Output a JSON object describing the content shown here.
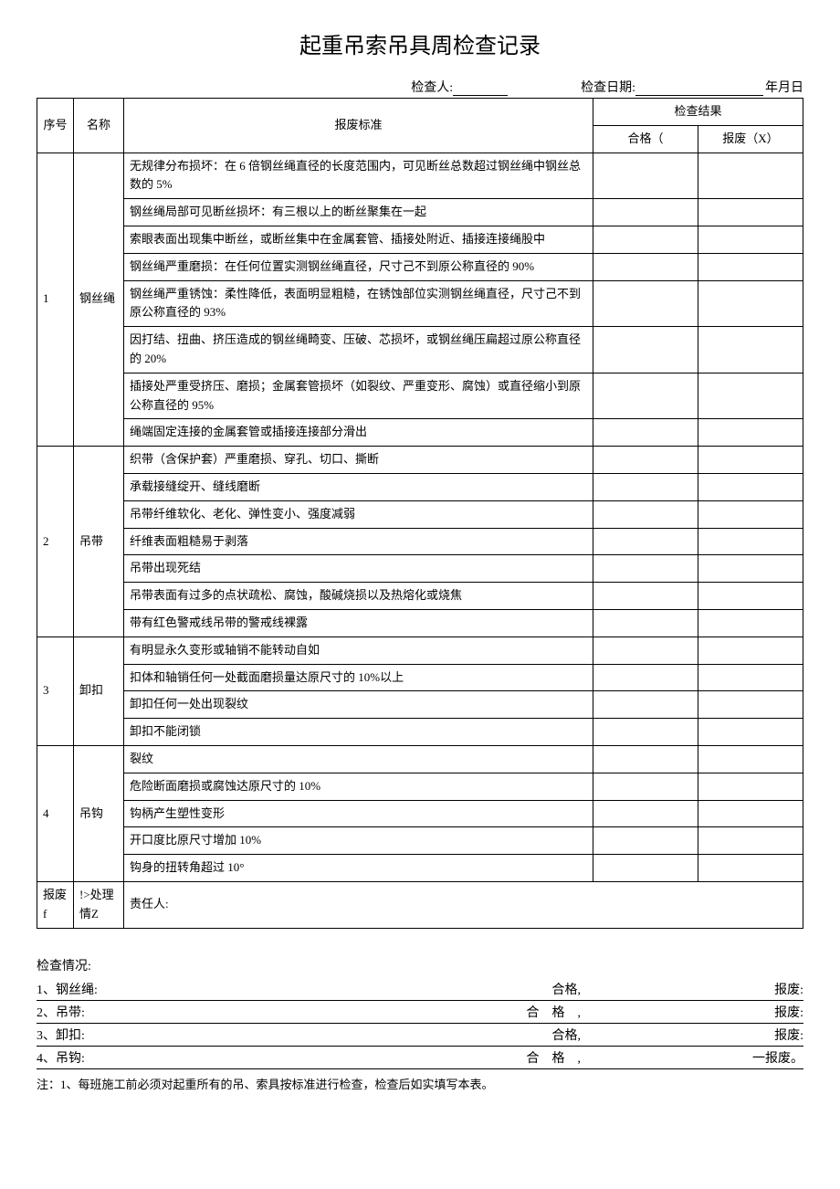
{
  "title": "起重吊索吊具周检查记录",
  "header": {
    "inspector_label": "检查人:",
    "date_label": "检查日期:",
    "date_suffix": "年月日"
  },
  "table": {
    "headers": {
      "seq": "序号",
      "name": "名称",
      "standard": "报废标准",
      "result": "检查结果",
      "pass": "合格（",
      "fail": "报废（X）"
    },
    "sections": [
      {
        "seq": "1",
        "name": "钢丝绳",
        "rows": [
          "无规律分布损坏：在 6 倍钢丝绳直径的长度范围内，可见断丝总数超过钢丝绳中钢丝总数的 5%",
          "钢丝绳局部可见断丝损坏：有三根以上的断丝聚集在一起",
          "索眼表面出现集中断丝，或断丝集中在金属套管、插接处附近、插接连接绳股中",
          "钢丝绳严重磨损：在任何位置实测钢丝绳直径，尺寸己不到原公称直径的 90%",
          "钢丝绳严重锈蚀：柔性降低，表面明显粗糙，在锈蚀部位实测钢丝绳直径，尺寸己不到原公称直径的 93%",
          "因打结、扭曲、挤压造成的钢丝绳畸变、压破、芯损坏，或钢丝绳压扁超过原公称直径的 20%",
          "插接处严重受挤压、磨损；金属套管损坏（如裂纹、严重变形、腐蚀）或直径缩小到原公称直径的 95%",
          "绳端固定连接的金属套管或插接连接部分滑出"
        ]
      },
      {
        "seq": "2",
        "name": "吊带",
        "rows": [
          "织带（含保护套）严重磨损、穿孔、切口、撕断",
          "承载接缝绽开、缝线磨断",
          "吊带纤维软化、老化、弹性变小、强度减弱",
          "纤维表面粗糙易于剥落",
          "吊带出现死结",
          "吊带表面有过多的点状疏松、腐蚀，酸碱烧损以及热熔化或烧焦",
          "带有红色警戒线吊带的警戒线裸露"
        ]
      },
      {
        "seq": "3",
        "name": "卸扣",
        "rows": [
          "有明显永久变形或轴销不能转动自如",
          "扣体和轴销任何一处截面磨损量达原尺寸的 10%以上",
          "卸扣任何一处出现裂纹",
          "卸扣不能闭锁"
        ]
      },
      {
        "seq": "4",
        "name": "吊钩",
        "rows": [
          "裂纹",
          "危险断面磨损或腐蚀达原尺寸的 10%",
          "钩柄产生塑性变形",
          "开口度比原尺寸增加 10%",
          "钩身的扭转角超过 10°"
        ]
      }
    ],
    "footer": {
      "discard_label": "报废f",
      "process_label": "!>处理情Z",
      "responsible": "责任人:"
    }
  },
  "summary": {
    "title": "检查情况:",
    "items": [
      {
        "num": "1",
        "name": "钢丝绳:",
        "pass": "合格,",
        "fail": "报废:"
      },
      {
        "num": "2",
        "name": "吊带:",
        "pass": "合　格　,",
        "fail": "报废:"
      },
      {
        "num": "3",
        "name": "卸扣:",
        "pass": "合格,",
        "fail": "报废:"
      },
      {
        "num": "4",
        "name": "吊钩:",
        "pass": "合　格　,",
        "fail": "一报废。"
      }
    ]
  },
  "note": "注：1、每班施工前必须对起重所有的吊、索具按标准进行检查，检查后如实填写本表。"
}
